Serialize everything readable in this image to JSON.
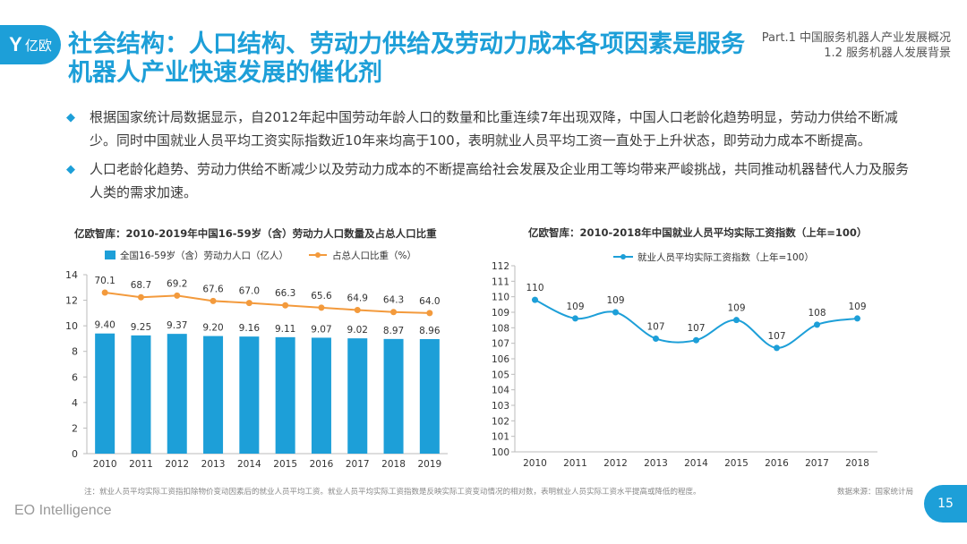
{
  "logo": {
    "mark": "Y",
    "text": "亿欧"
  },
  "header": {
    "title": "社会结构：人口结构、劳动力供给及劳动力成本各项因素是服务机器人产业快速发展的催化剂",
    "part": "Part.1 中国服务机器人产业发展概况",
    "section": "1.2 服务机器人发展背景"
  },
  "bullets": [
    {
      "icon": "diamond-bullet-icon",
      "text": "根据国家统计局数据显示，自2012年起中国劳动年龄人口的数量和比重连续7年出现双降，中国人口老龄化趋势明显，劳动力供给不断减少。同时中国就业人员平均工资实际指数近10年来均高于100，表明就业人员平均工资一直处于上升状态，即劳动力成本不断提高。"
    },
    {
      "icon": "diamond-bullet-icon",
      "text": "人口老龄化趋势、劳动力供给不断减少以及劳动力成本的不断提高给社会发展及企业用工等均带来严峻挑战，共同推动机器替代人力及服务人类的需求加速。"
    }
  ],
  "chart_data": [
    {
      "type": "bar",
      "title": "亿欧智库：2010-2019年中国16-59岁（含）劳动力人口数量及占总人口比重",
      "categories": [
        "2010",
        "2011",
        "2012",
        "2013",
        "2014",
        "2015",
        "2016",
        "2017",
        "2018",
        "2019"
      ],
      "series": [
        {
          "name": "全国16-59岁（含）劳动力人口（亿人）",
          "type": "bar",
          "values": [
            9.4,
            9.25,
            9.37,
            9.2,
            9.16,
            9.11,
            9.07,
            9.02,
            8.97,
            8.96
          ],
          "labels": [
            "9.40",
            "9.25",
            "9.37",
            "9.20",
            "9.16",
            "9.11",
            "9.07",
            "9.02",
            "8.97",
            "8.96"
          ]
        },
        {
          "name": "占总人口比重（%）",
          "type": "line",
          "values": [
            70.1,
            68.7,
            69.2,
            67.6,
            67.0,
            66.3,
            65.6,
            64.9,
            64.3,
            64.0
          ],
          "labels": [
            "70.1",
            "68.7",
            "69.2",
            "67.6",
            "67.0",
            "66.3",
            "65.6",
            "64.9",
            "64.3",
            "64.0"
          ]
        }
      ],
      "yticks": [
        "0",
        "2",
        "4",
        "6",
        "8",
        "10",
        "12",
        "14"
      ],
      "ylim": [
        0,
        14
      ],
      "legend": "top",
      "colors": {
        "bar": "#1d9fd8",
        "line": "#f39a3c"
      }
    },
    {
      "type": "line",
      "title": "亿欧智库：2010-2018年中国就业人员平均实际工资指数（上年=100）",
      "categories": [
        "2010",
        "2011",
        "2012",
        "2013",
        "2014",
        "2015",
        "2016",
        "2017",
        "2018"
      ],
      "series": [
        {
          "name": "就业人员平均实际工资指数（上年=100）",
          "values": [
            109.8,
            108.6,
            109.0,
            107.3,
            107.2,
            108.5,
            106.7,
            108.2,
            108.6
          ],
          "labels": [
            "110",
            "109",
            "109",
            "107",
            "107",
            "109",
            "107",
            "108",
            "109"
          ]
        }
      ],
      "yticks": [
        "100",
        "101",
        "102",
        "103",
        "104",
        "105",
        "106",
        "107",
        "108",
        "109",
        "110",
        "111",
        "112"
      ],
      "ylim": [
        100,
        112
      ],
      "legend": "top",
      "colors": {
        "line": "#1d9fd8"
      }
    }
  ],
  "footer": {
    "note": "注：就业人员平均实际工资指扣除物价变动因素后的就业人员平均工资。就业人员平均实际工资指数是反映实际工资变动情况的相对数，表明就业人员实际工资水平提高或降低的程度。",
    "source": "数据来源：国家统计局",
    "brand": "EO Intelligence",
    "page": "15"
  }
}
